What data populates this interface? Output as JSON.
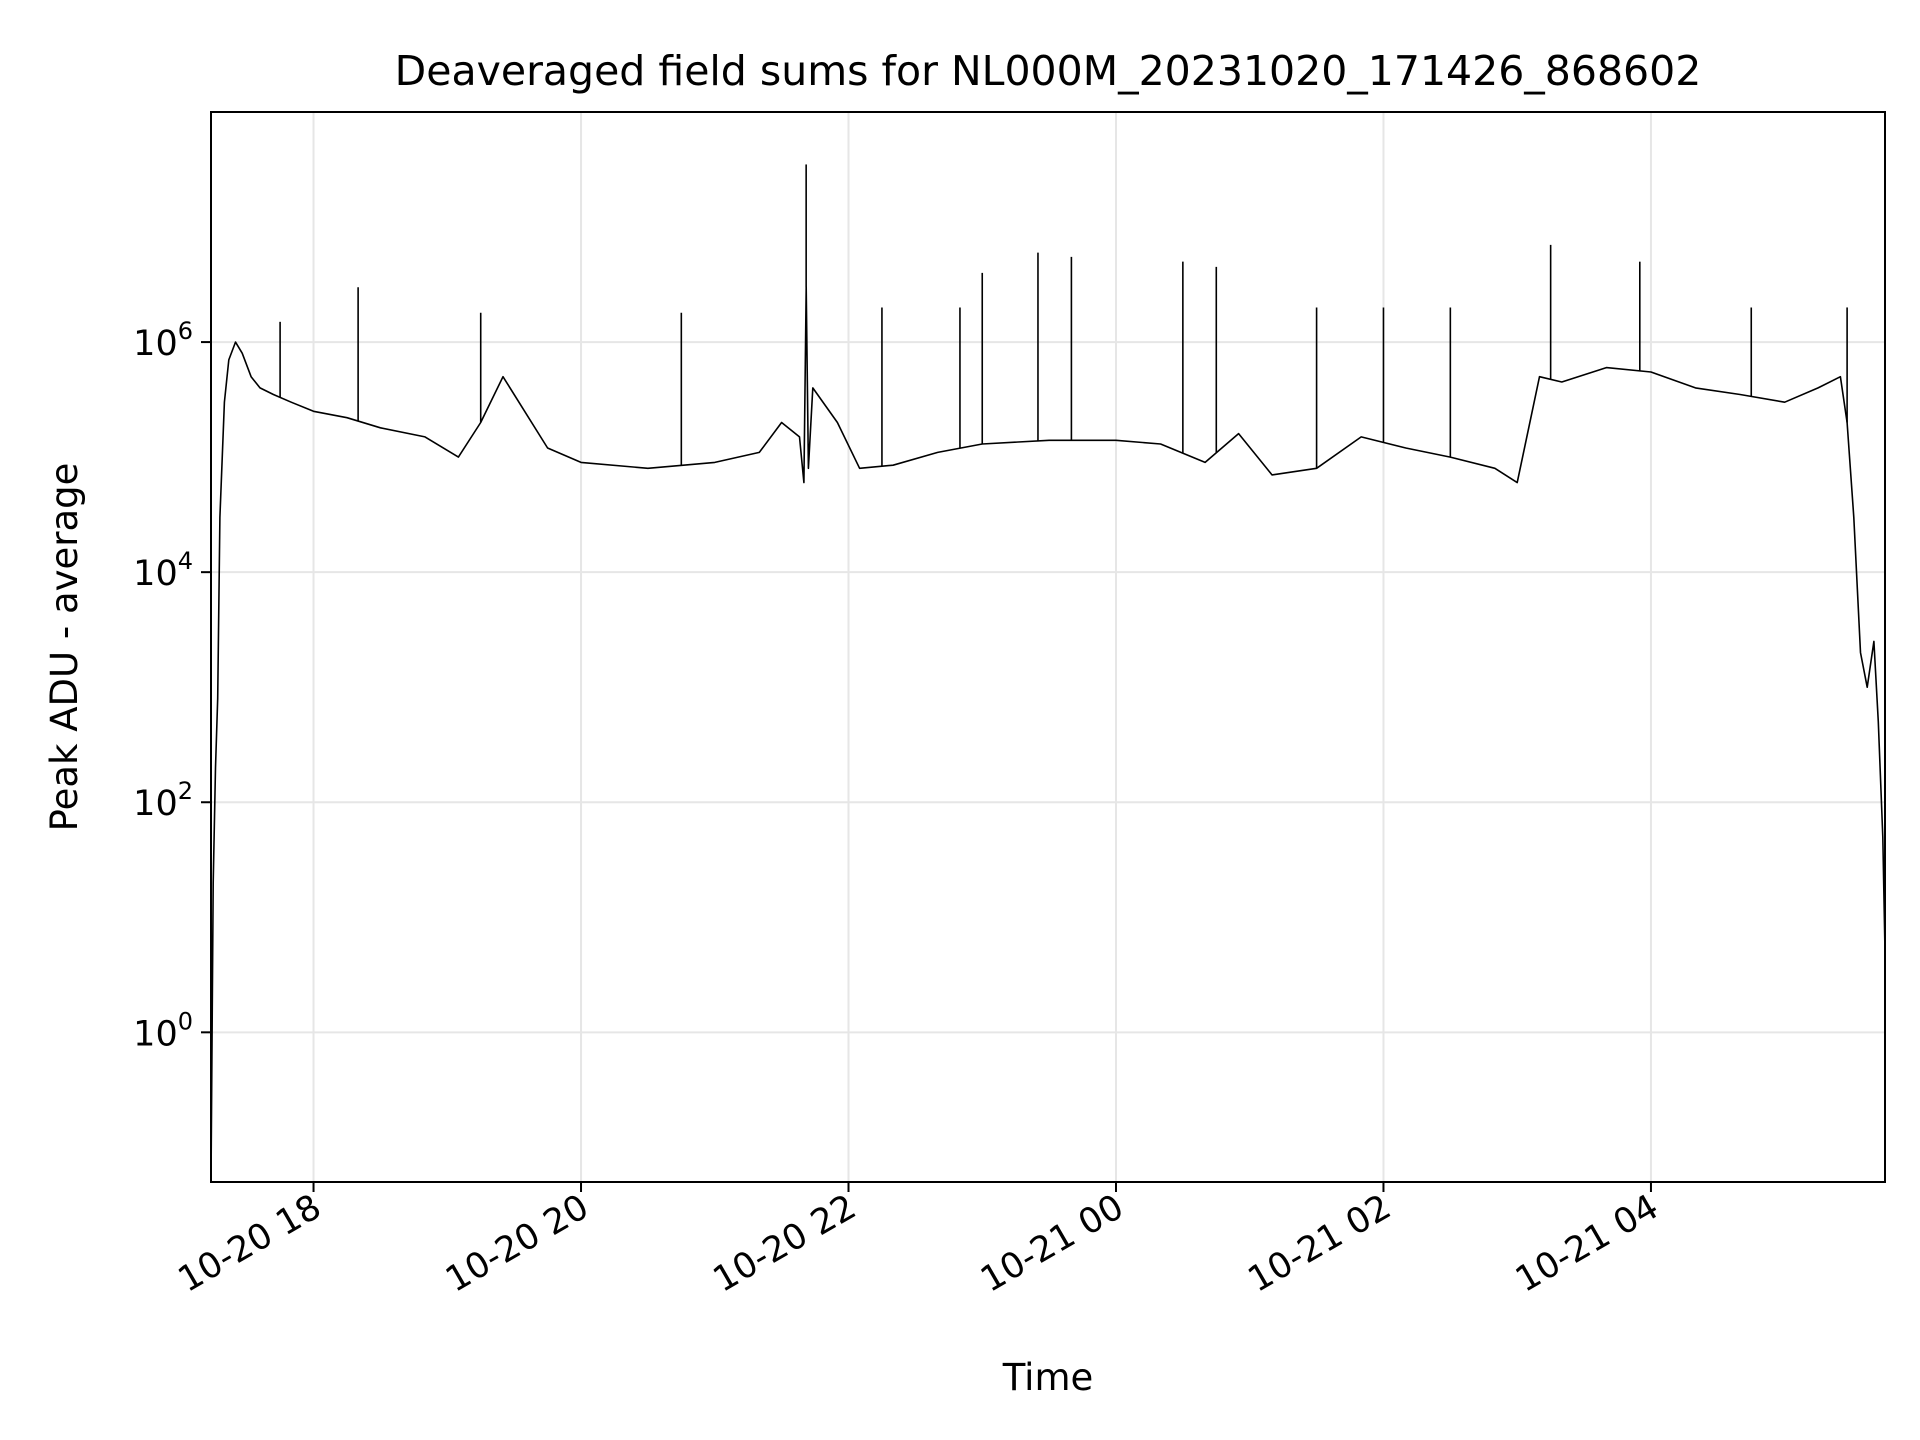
{
  "chart_data": {
    "type": "line",
    "title": "Deaveraged field sums for NL000M_20231020_171426_868602",
    "xlabel": "Time",
    "ylabel": "Peak ADU - average",
    "y_scale": "log",
    "ylim": [
      0.05,
      100000000
    ],
    "xlim": [
      "2023-10-20 17:14",
      "2023-10-21 05:45"
    ],
    "grid": true,
    "line_color": "#000000",
    "grid_color": "#e6e6e6",
    "x_ticks": [
      {
        "value": "2023-10-20 18:00",
        "label": "10-20 18"
      },
      {
        "value": "2023-10-20 20:00",
        "label": "10-20 20"
      },
      {
        "value": "2023-10-20 22:00",
        "label": "10-20 22"
      },
      {
        "value": "2023-10-21 00:00",
        "label": "10-21 00"
      },
      {
        "value": "2023-10-21 02:00",
        "label": "10-21 02"
      },
      {
        "value": "2023-10-21 04:00",
        "label": "10-21 04"
      }
    ],
    "y_ticks": [
      {
        "value": 1,
        "base": "10",
        "exp": "0"
      },
      {
        "value": 100,
        "base": "10",
        "exp": "2"
      },
      {
        "value": 10000,
        "base": "10",
        "exp": "4"
      },
      {
        "value": 1000000,
        "base": "10",
        "exp": "6"
      }
    ],
    "series": [
      {
        "x": [
          "2023-10-20 17:14",
          "2023-10-20 17:15",
          "2023-10-20 17:16",
          "2023-10-20 17:17",
          "2023-10-20 17:18",
          "2023-10-20 17:20",
          "2023-10-20 17:22",
          "2023-10-20 17:25",
          "2023-10-20 17:28",
          "2023-10-20 17:32",
          "2023-10-20 17:36",
          "2023-10-20 17:42",
          "2023-10-20 17:50",
          "2023-10-20 18:00",
          "2023-10-20 18:15",
          "2023-10-20 18:30",
          "2023-10-20 18:50",
          "2023-10-20 19:05",
          "2023-10-20 19:15",
          "2023-10-20 19:25",
          "2023-10-20 19:45",
          "2023-10-20 20:00",
          "2023-10-20 20:30",
          "2023-10-20 21:00",
          "2023-10-20 21:20",
          "2023-10-20 21:30",
          "2023-10-20 21:38",
          "2023-10-20 21:40",
          "2023-10-20 21:41",
          "2023-10-20 21:42",
          "2023-10-20 21:44",
          "2023-10-20 21:55",
          "2023-10-20 22:05",
          "2023-10-20 22:20",
          "2023-10-20 22:40",
          "2023-10-20 23:00",
          "2023-10-20 23:30",
          "2023-10-21 00:00",
          "2023-10-21 00:20",
          "2023-10-21 00:40",
          "2023-10-21 00:55",
          "2023-10-21 01:10",
          "2023-10-21 01:30",
          "2023-10-21 01:50",
          "2023-10-21 02:10",
          "2023-10-21 02:30",
          "2023-10-21 02:50",
          "2023-10-21 03:00",
          "2023-10-21 03:10",
          "2023-10-21 03:20",
          "2023-10-21 03:40",
          "2023-10-21 04:00",
          "2023-10-21 04:20",
          "2023-10-21 04:40",
          "2023-10-21 05:00",
          "2023-10-21 05:15",
          "2023-10-21 05:25",
          "2023-10-21 05:28",
          "2023-10-21 05:31",
          "2023-10-21 05:34",
          "2023-10-21 05:37",
          "2023-10-21 05:40",
          "2023-10-21 05:42",
          "2023-10-21 05:44",
          "2023-10-21 05:45"
        ],
        "y": [
          0.05,
          20,
          200,
          800,
          30000,
          300000,
          700000,
          1000000,
          800000,
          500000,
          400000,
          350000,
          300000,
          250000,
          220000,
          180000,
          150000,
          100000,
          200000,
          500000,
          120000,
          90000,
          80000,
          90000,
          110000,
          200000,
          150000,
          60000,
          3000000,
          80000,
          400000,
          200000,
          80000,
          85000,
          110000,
          130000,
          140000,
          140000,
          130000,
          90000,
          160000,
          70000,
          80000,
          150000,
          120000,
          100000,
          80000,
          60000,
          500000,
          450000,
          600000,
          550000,
          400000,
          350000,
          300000,
          400000,
          500000,
          200000,
          30000,
          2000,
          1000,
          2500,
          500,
          50,
          5
        ]
      }
    ],
    "spikes": [
      {
        "x": "2023-10-20 17:45",
        "y": 1500000
      },
      {
        "x": "2023-10-20 18:20",
        "y": 3000000
      },
      {
        "x": "2023-10-20 19:15",
        "y": 1800000
      },
      {
        "x": "2023-10-20 20:45",
        "y": 1800000
      },
      {
        "x": "2023-10-20 21:41",
        "y": 35000000
      },
      {
        "x": "2023-10-20 22:15",
        "y": 2000000
      },
      {
        "x": "2023-10-20 22:50",
        "y": 2000000
      },
      {
        "x": "2023-10-20 23:00",
        "y": 4000000
      },
      {
        "x": "2023-10-20 23:25",
        "y": 6000000
      },
      {
        "x": "2023-10-20 23:40",
        "y": 5500000
      },
      {
        "x": "2023-10-21 00:30",
        "y": 5000000
      },
      {
        "x": "2023-10-21 00:45",
        "y": 4500000
      },
      {
        "x": "2023-10-21 01:30",
        "y": 2000000
      },
      {
        "x": "2023-10-21 02:00",
        "y": 2000000
      },
      {
        "x": "2023-10-21 02:30",
        "y": 2000000
      },
      {
        "x": "2023-10-21 03:15",
        "y": 7000000
      },
      {
        "x": "2023-10-21 03:55",
        "y": 5000000
      },
      {
        "x": "2023-10-21 04:45",
        "y": 2000000
      },
      {
        "x": "2023-10-21 05:28",
        "y": 2000000
      }
    ]
  }
}
